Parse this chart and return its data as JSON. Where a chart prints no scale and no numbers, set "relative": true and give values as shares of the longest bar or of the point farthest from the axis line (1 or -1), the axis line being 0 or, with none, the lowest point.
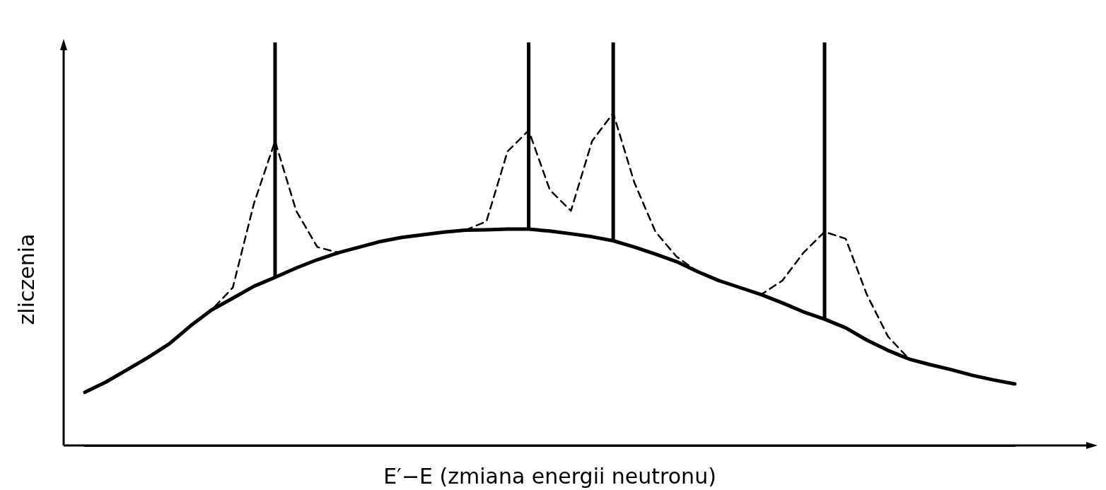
{
  "chart_data": {
    "type": "line",
    "relative": true,
    "xlabel": "E′−E (zmiana energii neutronu)",
    "ylabel": "zliczenia",
    "grid": false,
    "marker": "none",
    "categories": [
      null,
      null,
      null,
      null,
      null,
      null,
      null,
      null,
      null,
      null,
      null,
      null,
      null,
      null,
      null,
      null,
      null,
      null,
      null,
      null,
      null,
      null,
      null,
      null,
      null,
      null,
      null,
      null,
      null,
      null,
      null,
      null,
      null,
      null,
      null,
      null,
      null,
      null,
      null,
      null,
      null,
      null,
      null,
      null,
      null
    ],
    "series": [
      {
        "line_style": "solid",
        "color": "#000000",
        "values": [
          0.16,
          0.191,
          0.228,
          0.265,
          0.306,
          0.36,
          0.408,
          0.443,
          0.479,
          0.506,
          0.534,
          0.559,
          0.58,
          0.597,
          0.614,
          0.626,
          0.634,
          0.642,
          0.648,
          0.649,
          0.651,
          0.651,
          0.645,
          0.637,
          0.628,
          0.616,
          0.597,
          0.576,
          0.553,
          0.523,
          0.496,
          0.475,
          0.454,
          0.429,
          0.402,
          0.38,
          0.354,
          0.317,
          0.286,
          0.26,
          0.243,
          0.228,
          0.211,
          0.197,
          0.185
        ]
      },
      {
        "line_style": "dashed",
        "color": "#000000",
        "values": [
          0.16,
          0.191,
          0.228,
          0.265,
          0.306,
          0.36,
          0.408,
          0.475,
          0.728,
          0.916,
          0.706,
          0.597,
          0.58,
          0.597,
          0.614,
          0.626,
          0.634,
          0.642,
          0.648,
          0.674,
          0.885,
          0.948,
          0.769,
          0.706,
          0.916,
          1,
          0.791,
          0.643,
          0.568,
          0.523,
          0.496,
          0.475,
          0.454,
          0.496,
          0.58,
          0.643,
          0.622,
          0.454,
          0.328,
          0.26,
          0.243,
          0.228,
          0.211,
          0.197,
          0.185
        ]
      }
    ]
  }
}
